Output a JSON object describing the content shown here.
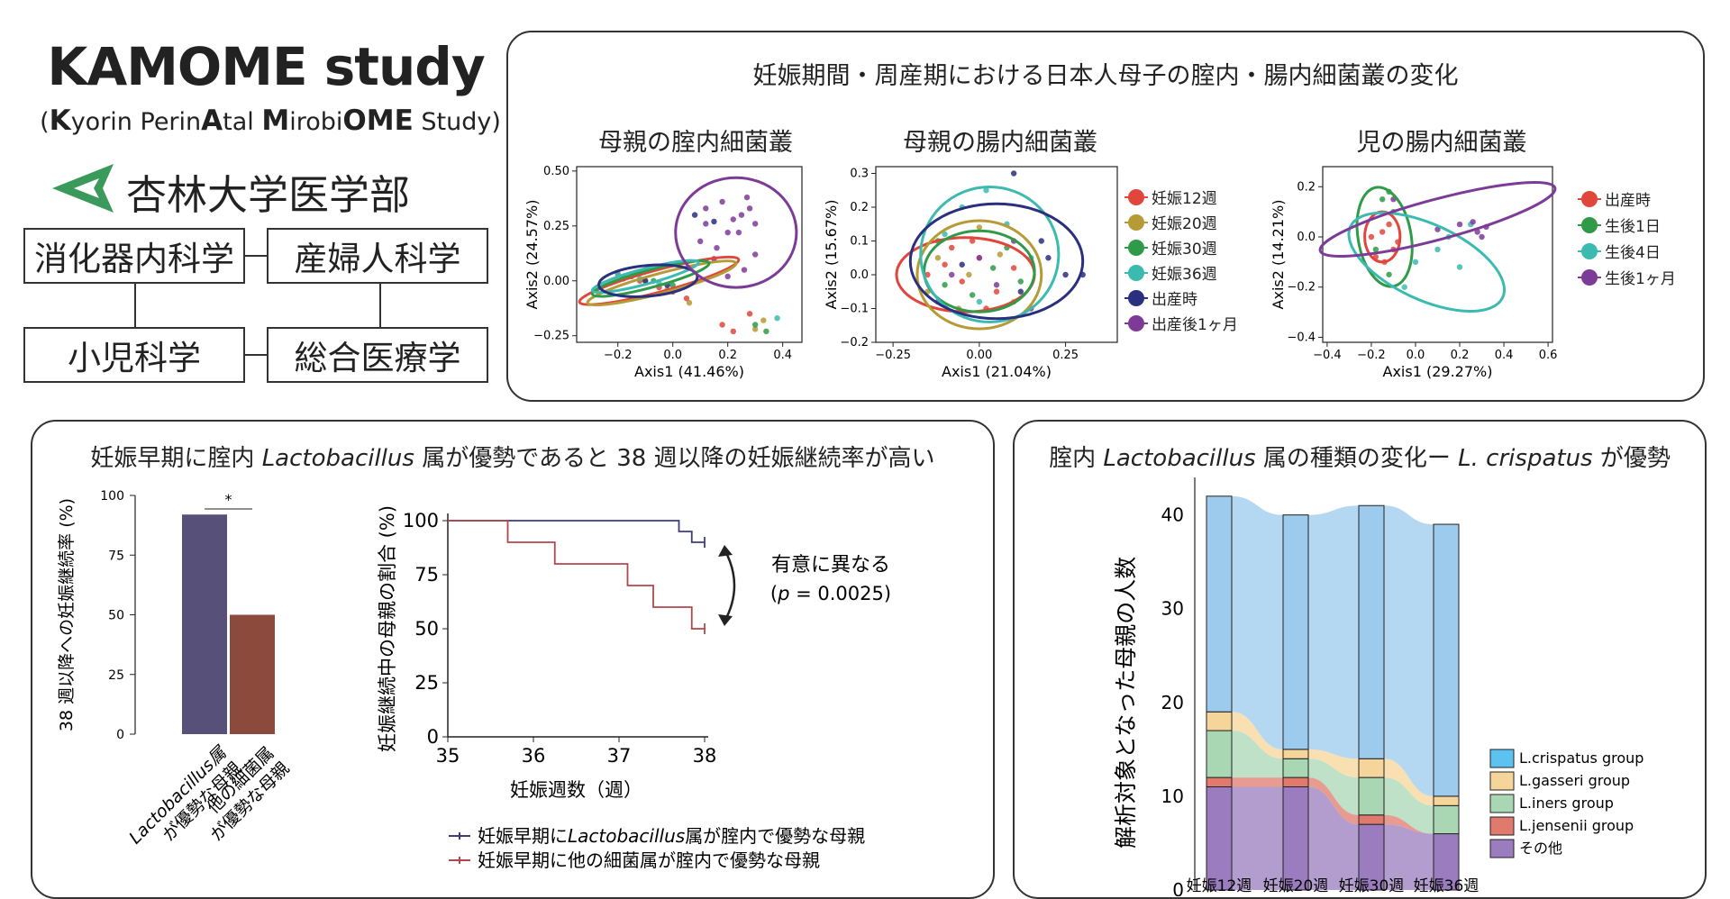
{
  "header": {
    "title": "KAMOME study",
    "subtitle_prefix": "(",
    "subtitle": [
      {
        "t": "K",
        "b": true
      },
      {
        "t": "yorin Perin",
        "b": false
      },
      {
        "t": "A",
        "b": true
      },
      {
        "t": "tal ",
        "b": false
      },
      {
        "t": "M",
        "b": true
      },
      {
        "t": "irobi",
        "b": false
      },
      {
        "t": "OME",
        "b": true
      },
      {
        "t": " Study)",
        "b": false
      }
    ],
    "university": "杏林大学医学部",
    "logo_color": "#3a9a5c",
    "departments": [
      "消化器内科学",
      "産婦人科学",
      "小児科学",
      "総合医療学"
    ]
  },
  "panel_top": {
    "title": "妊娠期間・周産期における日本人母子の腟内・腸内細菌叢の変化",
    "colors": {
      "red": "#e0463c",
      "olive": "#b59a35",
      "green": "#2f9a48",
      "teal": "#3bbab0",
      "navy": "#2a2f7e",
      "purple": "#7d3b98"
    },
    "legend_mother": [
      "妊娠12週",
      "妊娠20週",
      "妊娠30週",
      "妊娠36週",
      "出産時",
      "出産後1ヶ月"
    ],
    "legend_child": [
      "出産時",
      "生後1日",
      "生後4日",
      "生後1ヶ月"
    ]
  },
  "chart_data": [
    {
      "type": "scatter",
      "title": "母親の腟内細菌叢",
      "xlabel": "Axis1 (41.46%)",
      "ylabel": "Axis2 (24.57%)",
      "xlim": [
        -0.35,
        0.47
      ],
      "ylim": [
        -0.28,
        0.52
      ],
      "xticks": [
        "−0.2",
        "0.0",
        "0.2",
        "0.4"
      ],
      "xtick_values": [
        -0.2,
        0.0,
        0.2,
        0.4
      ],
      "yticks": [
        "0.50",
        "0.25",
        "0.00",
        "−0.25"
      ],
      "ytick_values": [
        0.5,
        0.25,
        0.0,
        -0.25
      ],
      "series": [
        {
          "name": "妊娠12週",
          "color": "red",
          "ellipse": [
            -0.05,
            0.0,
            0.3,
            0.05,
            -15
          ],
          "points": [
            [
              -0.2,
              0.03
            ],
            [
              -0.12,
              0.0
            ],
            [
              -0.05,
              -0.03
            ],
            [
              0.0,
              -0.05
            ],
            [
              0.05,
              -0.08
            ],
            [
              0.18,
              -0.2
            ],
            [
              0.28,
              -0.15
            ],
            [
              0.22,
              -0.23
            ]
          ]
        },
        {
          "name": "妊娠20週",
          "color": "olive",
          "ellipse": [
            -0.04,
            -0.01,
            0.28,
            0.045,
            -15
          ],
          "points": [
            [
              -0.18,
              0.02
            ],
            [
              -0.1,
              0.0
            ],
            [
              -0.02,
              -0.04
            ],
            [
              0.06,
              -0.1
            ],
            [
              0.3,
              -0.22
            ],
            [
              0.33,
              -0.18
            ]
          ]
        },
        {
          "name": "妊娠30週",
          "color": "green",
          "ellipse": [
            -0.08,
            0.01,
            0.22,
            0.04,
            -15
          ],
          "points": [
            [
              -0.15,
              0.02
            ],
            [
              -0.07,
              0.0
            ],
            [
              0.0,
              -0.02
            ],
            [
              0.34,
              -0.23
            ],
            [
              0.3,
              -0.2
            ]
          ]
        },
        {
          "name": "妊娠36週",
          "color": "teal",
          "ellipse": [
            -0.1,
            0.02,
            0.2,
            0.035,
            -15
          ],
          "points": [
            [
              -0.2,
              0.03
            ],
            [
              -0.12,
              0.01
            ],
            [
              -0.05,
              -0.01
            ],
            [
              0.38,
              -0.17
            ]
          ]
        },
        {
          "name": "出産時",
          "color": "navy",
          "ellipse": [
            -0.09,
            0.0,
            0.18,
            0.07,
            -5
          ],
          "points": [
            [
              -0.18,
              0.01
            ],
            [
              -0.1,
              0.0
            ],
            [
              -0.02,
              -0.02
            ],
            [
              0.08,
              0.3
            ],
            [
              0.15,
              0.27
            ]
          ]
        },
        {
          "name": "出産後1ヶ月",
          "color": "purple",
          "ellipse": [
            0.23,
            0.22,
            0.22,
            0.25,
            0
          ],
          "points": [
            [
              0.12,
              0.33
            ],
            [
              0.18,
              0.36
            ],
            [
              0.22,
              0.28
            ],
            [
              0.25,
              0.3
            ],
            [
              0.28,
              0.33
            ],
            [
              0.24,
              0.22
            ],
            [
              0.1,
              0.18
            ],
            [
              0.16,
              0.15
            ],
            [
              0.3,
              0.26
            ],
            [
              0.2,
              0.02
            ],
            [
              0.15,
              0.1
            ],
            [
              0.3,
              0.12
            ],
            [
              0.26,
              0.05
            ],
            [
              0.12,
              0.26
            ],
            [
              0.2,
              0.22
            ],
            [
              0.27,
              0.38
            ]
          ]
        }
      ]
    },
    {
      "type": "scatter",
      "title": "母親の腸内細菌叢",
      "xlabel": "Axis1 (21.04%)",
      "ylabel": "Axis2 (15.67%)",
      "xlim": [
        -0.3,
        0.4
      ],
      "ylim": [
        -0.2,
        0.32
      ],
      "xticks": [
        "−0.25",
        "0.00",
        "0.25"
      ],
      "xtick_values": [
        -0.25,
        0.0,
        0.25
      ],
      "yticks": [
        "0.3",
        "0.2",
        "0.1",
        "0.0",
        "−0.1",
        "−0.2"
      ],
      "ytick_values": [
        0.3,
        0.2,
        0.1,
        0.0,
        -0.1,
        -0.2
      ],
      "series": [
        {
          "name": "妊娠12週",
          "color": "red",
          "ellipse": [
            -0.04,
            0.0,
            0.2,
            0.11,
            0
          ],
          "points": [
            [
              -0.1,
              0.03
            ],
            [
              -0.05,
              -0.02
            ],
            [
              0.0,
              0.05
            ],
            [
              0.05,
              -0.05
            ],
            [
              -0.15,
              0.0
            ],
            [
              0.1,
              0.02
            ],
            [
              -0.08,
              0.08
            ],
            [
              0.02,
              -0.1
            ],
            [
              -0.02,
              0.1
            ]
          ]
        },
        {
          "name": "妊娠20週",
          "color": "olive",
          "ellipse": [
            0.0,
            0.0,
            0.18,
            0.16,
            0
          ],
          "points": [
            [
              -0.12,
              0.05
            ],
            [
              -0.03,
              0.0
            ],
            [
              0.06,
              0.06
            ],
            [
              0.1,
              -0.08
            ],
            [
              -0.06,
              -0.1
            ],
            [
              0.0,
              0.14
            ],
            [
              -0.15,
              -0.05
            ]
          ]
        },
        {
          "name": "妊娠30週",
          "color": "green",
          "ellipse": [
            0.0,
            0.01,
            0.16,
            0.12,
            0
          ],
          "points": [
            [
              -0.1,
              -0.03
            ],
            [
              0.04,
              0.02
            ],
            [
              -0.02,
              -0.06
            ],
            [
              0.08,
              0.08
            ],
            [
              -0.12,
              0.1
            ],
            [
              0.12,
              -0.02
            ]
          ]
        },
        {
          "name": "妊娠36週",
          "color": "teal",
          "ellipse": [
            0.03,
            0.06,
            0.2,
            0.2,
            0
          ],
          "points": [
            [
              -0.05,
              0.2
            ],
            [
              0.02,
              0.25
            ],
            [
              0.08,
              0.15
            ],
            [
              -0.1,
              0.12
            ],
            [
              0.15,
              0.05
            ],
            [
              0.0,
              -0.08
            ]
          ]
        },
        {
          "name": "出産時",
          "color": "navy",
          "ellipse": [
            0.05,
            0.04,
            0.25,
            0.17,
            0
          ],
          "points": [
            [
              0.2,
              0.05
            ],
            [
              0.25,
              0.0
            ],
            [
              0.3,
              0.0
            ],
            [
              0.1,
              0.3
            ],
            [
              0.18,
              0.1
            ],
            [
              -0.05,
              0.03
            ],
            [
              0.12,
              -0.05
            ]
          ]
        },
        {
          "name": "出産後1ヶ月",
          "color": "purple",
          "ellipse": null,
          "points": [
            [
              0.05,
              -0.03
            ],
            [
              -0.08,
              0.0
            ],
            [
              0.1,
              0.1
            ],
            [
              0.0,
              0.05
            ],
            [
              -0.12,
              -0.08
            ],
            [
              0.15,
              -0.1
            ]
          ]
        }
      ]
    },
    {
      "type": "scatter",
      "title": "児の腸内細菌叢",
      "xlabel": "Axis1 (29.27%)",
      "ylabel": "Axis2 (14.21%)",
      "xlim": [
        -0.42,
        0.62
      ],
      "ylim": [
        -0.42,
        0.28
      ],
      "xticks": [
        "−0.4",
        "−0.2",
        "0.0",
        "0.2",
        "0.4",
        "0.6"
      ],
      "xtick_values": [
        -0.4,
        -0.2,
        0.0,
        0.2,
        0.4,
        0.6
      ],
      "yticks": [
        "0.2",
        "0.0",
        "−0.2",
        "−0.4"
      ],
      "ytick_values": [
        0.2,
        0.0,
        -0.2,
        -0.4
      ],
      "series": [
        {
          "name": "出産時",
          "color": "red",
          "ellipse": [
            -0.15,
            0.0,
            0.08,
            0.1,
            0
          ],
          "points": [
            [
              -0.15,
              0.02
            ],
            [
              -0.1,
              -0.05
            ],
            [
              -0.18,
              -0.08
            ],
            [
              -0.12,
              0.05
            ],
            [
              -0.2,
              0.0
            ],
            [
              -0.08,
              -0.02
            ],
            [
              -0.14,
              -0.1
            ]
          ]
        },
        {
          "name": "生後1日",
          "color": "green",
          "ellipse": [
            -0.14,
            0.0,
            0.12,
            0.2,
            -10
          ],
          "points": [
            [
              -0.15,
              0.15
            ],
            [
              -0.12,
              0.18
            ],
            [
              -0.1,
              0.1
            ],
            [
              -0.18,
              -0.05
            ],
            [
              -0.12,
              -0.15
            ]
          ]
        },
        {
          "name": "生後4日",
          "color": "teal",
          "ellipse": [
            0.05,
            -0.1,
            0.38,
            0.15,
            25
          ],
          "points": [
            [
              0.0,
              -0.1
            ],
            [
              0.1,
              -0.05
            ],
            [
              0.15,
              0.0
            ],
            [
              -0.05,
              -0.2
            ],
            [
              0.25,
              0.05
            ],
            [
              0.2,
              -0.12
            ]
          ]
        },
        {
          "name": "生後1ヶ月",
          "color": "purple",
          "ellipse": [
            0.1,
            0.07,
            0.55,
            0.08,
            -15
          ],
          "points": [
            [
              0.2,
              0.05
            ],
            [
              0.28,
              0.02
            ],
            [
              0.32,
              0.04
            ],
            [
              0.1,
              0.03
            ],
            [
              0.26,
              0.06
            ],
            [
              -0.1,
              0.15
            ],
            [
              0.3,
              0.0
            ]
          ]
        }
      ]
    },
    {
      "type": "bar",
      "title": "妊娠早期に腟内 Lactobacillus 属が優勢であると 38 週以降の妊娠継続率が高い",
      "title_parts": [
        "妊娠早期に腟内 ",
        "Lactobacillus",
        " 属が優勢であると 38 週以降の妊娠継続率が高い"
      ],
      "categories": [
        "Lactobacillus属が優勢な母親",
        "他の細菌属が優勢な母親"
      ],
      "category_lines": [
        [
          "Lactobacillus属",
          "が優勢な母親"
        ],
        [
          "他の細菌属",
          "が優勢な母親"
        ]
      ],
      "values": [
        92,
        50
      ],
      "colors": [
        "#575079",
        "#8b4a3c"
      ],
      "ylabel": "38 週以降への妊娠継続率 (%)",
      "ylim": [
        0,
        100
      ],
      "yticks": [
        "100",
        "75",
        "50",
        "25",
        "0"
      ],
      "ytick_values": [
        100,
        75,
        50,
        25,
        0
      ],
      "annotation": "*"
    },
    {
      "type": "line",
      "xlabel": "妊娠週数（週）",
      "ylabel": "妊娠継続中の母親の割合 (%)",
      "xlim": [
        35,
        38
      ],
      "ylim": [
        0,
        100
      ],
      "xticks": [
        "35",
        "36",
        "37",
        "38"
      ],
      "xtick_values": [
        35,
        36,
        37,
        38
      ],
      "yticks": [
        "100",
        "75",
        "50",
        "25",
        "0"
      ],
      "ytick_values": [
        100,
        75,
        50,
        25,
        0
      ],
      "annotation": "有意に異なる",
      "p_prefix": "(",
      "p_value": "p",
      "p_suffix": " = 0.0025)",
      "series": [
        {
          "name": "妊娠早期にLactobacillus属が腟内で優勢な母親",
          "name_parts": [
            "妊娠早期に",
            "Lactobacillus",
            "属が腟内で優勢な母親"
          ],
          "color": "#3a3f7a",
          "x": [
            35,
            37.7,
            37.7,
            37.85,
            37.85,
            38
          ],
          "y": [
            100,
            100,
            95,
            95,
            90,
            90
          ]
        },
        {
          "name": "妊娠早期に他の細菌属が腟内で優勢な母親",
          "name_parts": [
            "妊娠早期に他の細菌属が腟内で優勢な母親"
          ],
          "color": "#b4474e",
          "x": [
            35,
            35.7,
            35.7,
            36.25,
            36.25,
            37.1,
            37.1,
            37.4,
            37.4,
            37.85,
            37.85,
            38
          ],
          "y": [
            100,
            100,
            90,
            90,
            80,
            80,
            70,
            70,
            60,
            60,
            50,
            50
          ]
        }
      ]
    },
    {
      "type": "area",
      "title": "腟内 Lactobacillus 属の種類の変化ー L. crispatus が優勢",
      "title_parts": [
        "腟内 ",
        "Lactobacillus",
        " 属の種類の変化ー ",
        "L. crispatus",
        " が優勢"
      ],
      "ylabel": "解析対象となった母親の人数",
      "categories": [
        "妊娠12週",
        "妊娠20週",
        "妊娠30週",
        "妊娠36週"
      ],
      "ylim": [
        0,
        44
      ],
      "yticks": [
        "40",
        "30",
        "20",
        "10",
        "0"
      ],
      "ytick_values": [
        40,
        30,
        20,
        10,
        0
      ],
      "series": [
        {
          "name": "その他",
          "color": "#9a7cbf",
          "values": [
            11,
            11,
            7,
            6
          ]
        },
        {
          "name": "L.jensenii group",
          "color": "#e07a6c",
          "values": [
            1,
            1,
            1,
            0
          ]
        },
        {
          "name": "L.iners group",
          "color": "#a9d7b4",
          "values": [
            5,
            2,
            4,
            3
          ]
        },
        {
          "name": "L.gasseri group",
          "color": "#f6d59a",
          "values": [
            2,
            1,
            2,
            1
          ]
        },
        {
          "name": "L.crispatus group",
          "color": "#9ccbee",
          "values": [
            23,
            25,
            27,
            29
          ]
        }
      ],
      "legend_order": [
        "L.crispatus group",
        "L.gasseri group",
        "L.iners group",
        "L.jensenii group",
        "その他"
      ],
      "legend_colors": [
        "#5cc3f0",
        "#f6d59a",
        "#a9d7b4",
        "#e07a6c",
        "#9a7cbf"
      ]
    }
  ]
}
